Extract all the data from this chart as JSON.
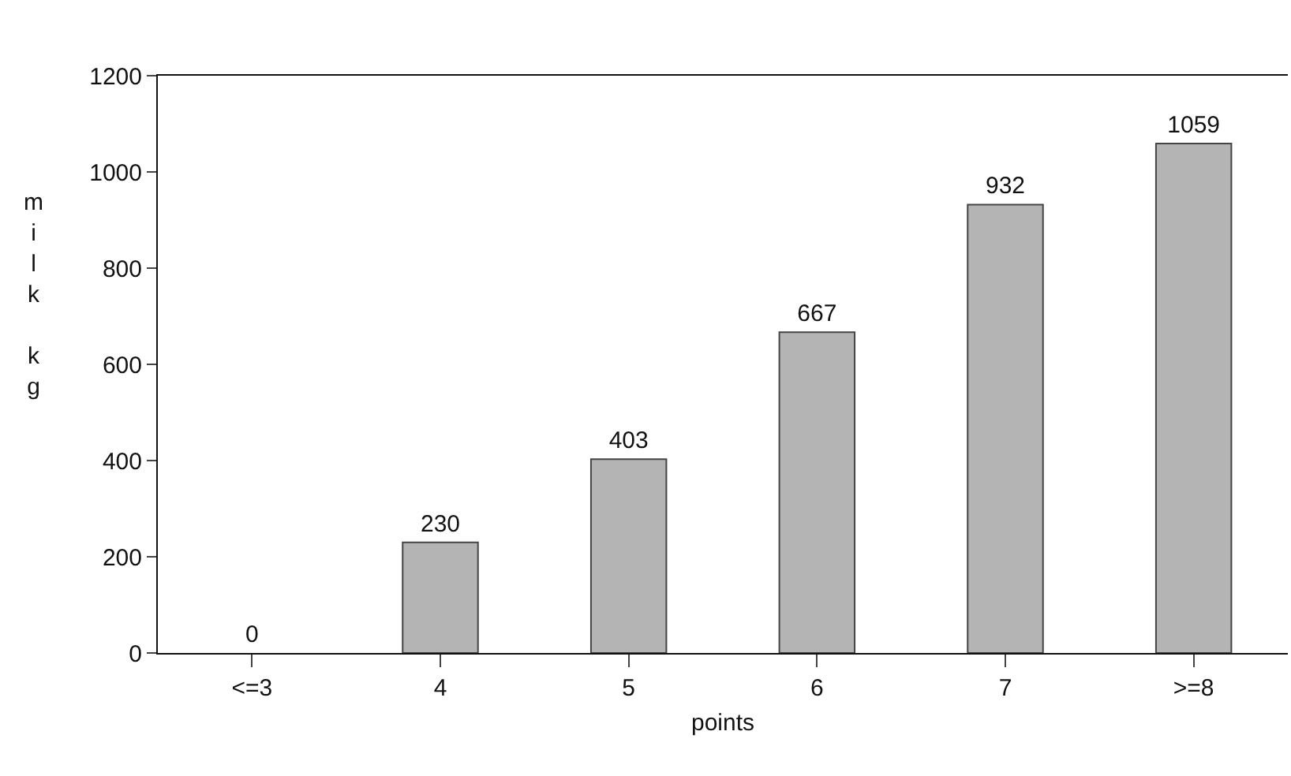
{
  "chart_data": {
    "type": "bar",
    "xlabel": "points",
    "ylabel": "milk kg",
    "categories": [
      "<=3",
      "4",
      "5",
      "6",
      "7",
      ">=8"
    ],
    "values": [
      0,
      230,
      403,
      667,
      932,
      1059
    ],
    "color": "#b4b4b4",
    "ylim": [
      0,
      1200
    ],
    "yticks": [
      0,
      200,
      400,
      600,
      800,
      1000,
      1200
    ],
    "data_labels": true
  }
}
